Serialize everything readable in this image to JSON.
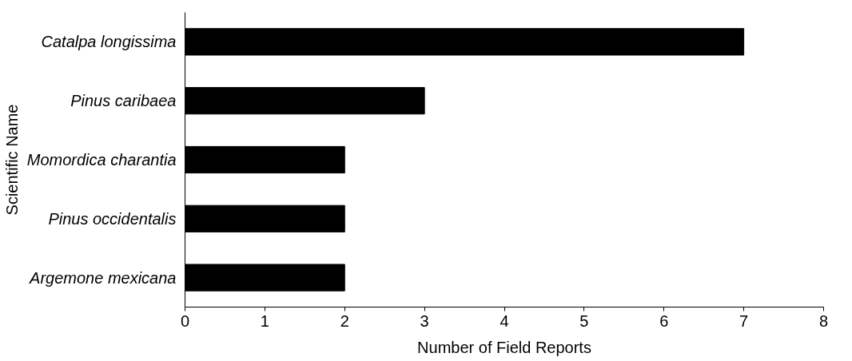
{
  "chart_data": {
    "type": "bar",
    "orientation": "horizontal",
    "xlabel": "Number of Field Reports",
    "ylabel": "Scientific Name",
    "categories": [
      "Catalpa longissima",
      "Pinus caribaea",
      "Momordica charantia",
      "Pinus occidentalis",
      "Argemone mexicana"
    ],
    "values": [
      7,
      3,
      2,
      2,
      2
    ],
    "color": "#000000",
    "xlim": [
      0,
      8
    ],
    "xticks": [
      0,
      1,
      2,
      3,
      4,
      5,
      6,
      7,
      8
    ],
    "grid": false
  }
}
